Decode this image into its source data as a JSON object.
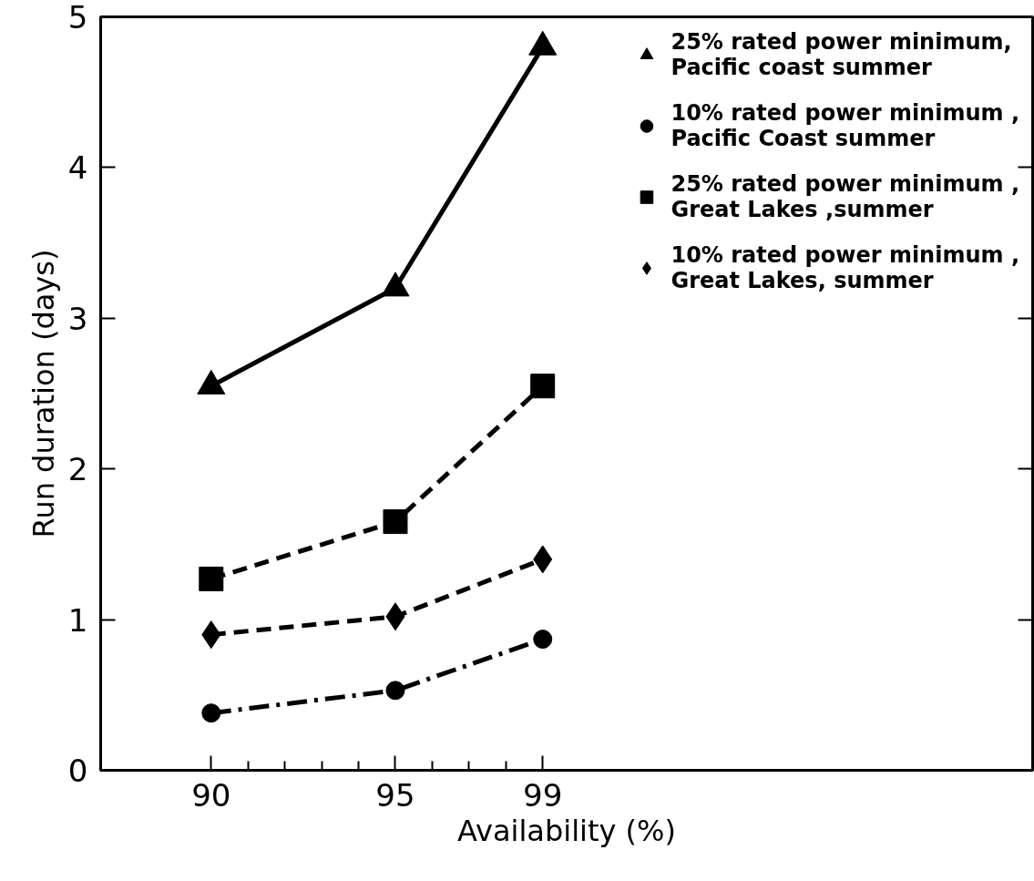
{
  "chart_data": {
    "type": "line",
    "xlabel": "Availability (%)",
    "ylabel": "Run duration (days)",
    "x": [
      90,
      95,
      99
    ],
    "xlim": [
      87,
      112.3
    ],
    "xticks": [
      90,
      {
        "value": 91,
        "label": null
      },
      {
        "value": 92,
        "label": null
      },
      {
        "value": 93,
        "label": null
      },
      {
        "value": 94,
        "label": null
      },
      95,
      {
        "value": 96,
        "label": null
      },
      {
        "value": 97,
        "label": null
      },
      {
        "value": 98,
        "label": null
      },
      99
    ],
    "ylim": [
      0,
      5
    ],
    "yticks": [
      0,
      1,
      2,
      3,
      4,
      5
    ],
    "grid": false,
    "legend": "top right",
    "series": [
      {
        "name": "25% rated power minimum,\nPacific coast summer",
        "color": "#000000",
        "marker": "triangle",
        "line_style": "solid",
        "values": [
          2.55,
          3.2,
          4.8
        ]
      },
      {
        "name": "10% rated power minimum ,\nPacific Coast summer",
        "color": "#000000",
        "marker": "circle",
        "line_style": "dashdot",
        "values": [
          0.38,
          0.53,
          0.87
        ]
      },
      {
        "name": "25% rated power minimum ,\nGreat Lakes ,summer",
        "color": "#000000",
        "marker": "square",
        "line_style": "dashed",
        "values": [
          1.27,
          1.65,
          2.55
        ]
      },
      {
        "name": "10% rated power minimum ,\nGreat Lakes, summer",
        "color": "#000000",
        "marker": "diamond",
        "line_style": "dashed",
        "values": [
          0.9,
          1.02,
          1.4
        ]
      }
    ]
  }
}
